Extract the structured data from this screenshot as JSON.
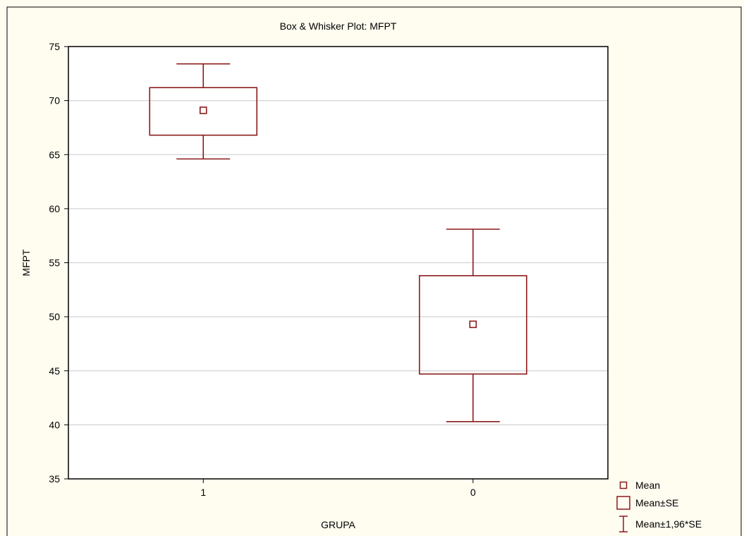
{
  "colors": {
    "background": "#fffcf0",
    "plot_background": "#ffffff",
    "series": "#8b1a1a",
    "grid": "#d4d4d4",
    "axis": "#000000"
  },
  "chart_data": {
    "type": "box",
    "title": "Box & Whisker Plot: MFPT",
    "xlabel": "GRUPA",
    "ylabel": "MFPT",
    "categories": [
      "1",
      "0"
    ],
    "ylim": [
      35,
      75
    ],
    "yticks": [
      "35",
      "40",
      "45",
      "50",
      "55",
      "60",
      "65",
      "70",
      "75"
    ],
    "grid": true,
    "legend_position": "bottom-right",
    "boxes": [
      {
        "category": "1",
        "mean": 69.1,
        "se_low": 66.8,
        "se_high": 71.2,
        "ci_low": 64.6,
        "ci_high": 73.4
      },
      {
        "category": "0",
        "mean": 49.3,
        "se_low": 44.7,
        "se_high": 53.8,
        "ci_low": 40.3,
        "ci_high": 58.1
      }
    ],
    "legend": [
      {
        "marker": "point",
        "label": "Mean"
      },
      {
        "marker": "box",
        "label": "Mean±SE"
      },
      {
        "marker": "whisker",
        "label": "Mean±1,96*SE"
      }
    ]
  }
}
